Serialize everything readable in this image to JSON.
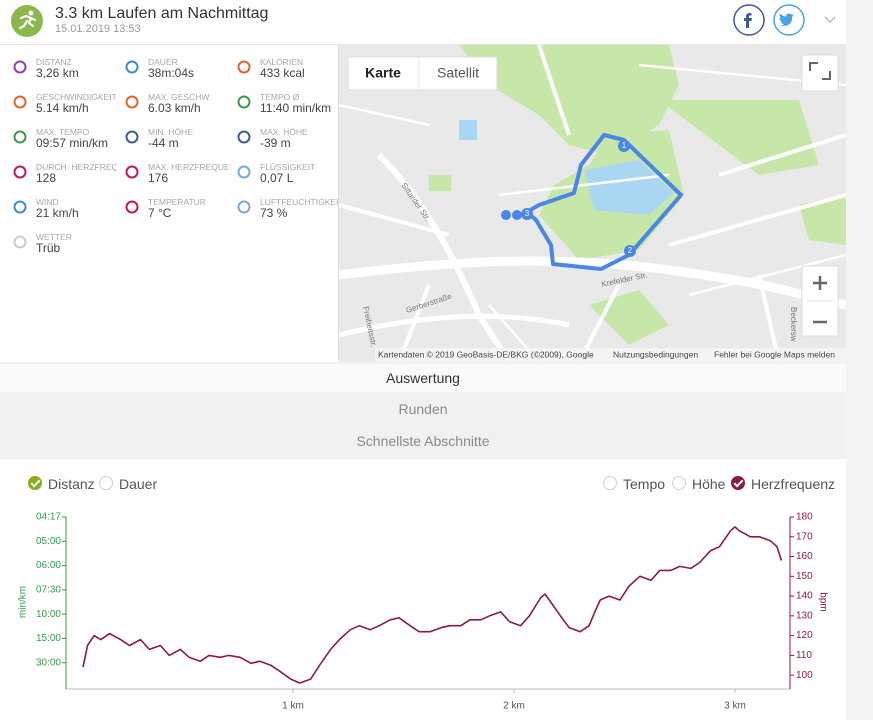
{
  "header": {
    "title": "3.3 km Laufen am Nachmittag",
    "date": "15.01.2019 13:53"
  },
  "stats": [
    {
      "label": "DISTANZ",
      "value": "3,26 km"
    },
    {
      "label": "DAUER",
      "value": "38m:04s"
    },
    {
      "label": "KALORIEN",
      "value": "433 kcal"
    },
    {
      "label": "GESCHWINDIGKEIT Ø",
      "value": "5.14 km/h"
    },
    {
      "label": "MAX. GESCHW.",
      "value": "6.03 km/h"
    },
    {
      "label": "TEMPO Ø",
      "value": "11:40 min/km"
    },
    {
      "label": "MAX. TEMPO",
      "value": "09:57 min/km"
    },
    {
      "label": "MIN. HÖHE",
      "value": "-44 m"
    },
    {
      "label": "MAX. HÖHE",
      "value": "-39 m"
    },
    {
      "label": "DURCH. HERZFREQUENZ",
      "value": "128"
    },
    {
      "label": "MAX. HERZFREQUENZ",
      "value": "176"
    },
    {
      "label": "FLÜSSIGKEIT",
      "value": "0,07 L"
    },
    {
      "label": "WIND",
      "value": "21 km/h"
    },
    {
      "label": "TEMPERATUR",
      "value": "7 °C"
    },
    {
      "label": "LUFTFEUCHTIGKEIT",
      "value": "73 %"
    },
    {
      "label": "WETTER",
      "value": "Trüb"
    }
  ],
  "map": {
    "buttons": [
      "Karte",
      "Satellit"
    ],
    "streets": [
      "Sittarder Str.",
      "Krefelder Str.",
      "Gerberstraße",
      "Freiheitsstr.",
      "Beckersw"
    ],
    "route_markers": [
      "1",
      "2",
      "3"
    ],
    "attribution": [
      "Kartendaten © 2019 GeoBasis-DE/BKG (©2009), Google",
      "Nutzungsbedingungen",
      "Fehler bei Google Maps melden"
    ]
  },
  "tabs": [
    "Auswertung",
    "Runden",
    "Schnellste Abschnitte"
  ],
  "chart_controls": {
    "x_modes": [
      "Distanz",
      "Dauer"
    ],
    "series_toggles": [
      "Tempo",
      "Höhe",
      "Herzfrequenz"
    ]
  },
  "chart_data": {
    "type": "line",
    "y_label": "min/km",
    "y2_label": "bpm",
    "xlim": [
      0,
      3.24
    ],
    "xticks": [
      {
        "value": 1,
        "label": "1 km"
      },
      {
        "value": 2,
        "label": "2 km"
      },
      {
        "value": 3,
        "label": "3 km"
      }
    ],
    "ylim": [
      0,
      14
    ],
    "yticks": [
      {
        "value": 2,
        "label": "30:00"
      },
      {
        "value": 4,
        "label": "15:00"
      },
      {
        "value": 6,
        "label": "10:00"
      },
      {
        "value": 8,
        "label": "07:30"
      },
      {
        "value": 10,
        "label": "06:00"
      },
      {
        "value": 12,
        "label": "05:00"
      },
      {
        "value": 14,
        "label": "04:17"
      }
    ],
    "y_color": "#3a9a4a",
    "y2lim": [
      94,
      180
    ],
    "y2ticks": [
      100,
      110,
      120,
      130,
      140,
      150,
      160,
      170,
      180
    ],
    "y2_color": "#8e1a3d",
    "x": [
      0.05,
      0.07,
      0.1,
      0.13,
      0.17,
      0.22,
      0.26,
      0.31,
      0.35,
      0.4,
      0.44,
      0.49,
      0.53,
      0.58,
      0.62,
      0.67,
      0.71,
      0.76,
      0.81,
      0.85,
      0.9,
      0.94,
      0.99,
      1.03,
      1.08,
      1.12,
      1.17,
      1.21,
      1.26,
      1.3,
      1.35,
      1.39,
      1.44,
      1.48,
      1.53,
      1.57,
      1.62,
      1.67,
      1.71,
      1.76,
      1.8,
      1.85,
      1.89,
      1.94,
      1.98,
      2.03,
      2.07,
      2.12,
      2.14,
      2.16,
      2.21,
      2.25,
      2.3,
      2.34,
      2.37,
      2.39,
      2.43,
      2.48,
      2.52,
      2.57,
      2.62,
      2.66,
      2.71,
      2.75,
      2.8,
      2.84,
      2.89,
      2.93,
      2.98,
      3.0,
      3.02,
      3.07,
      3.11,
      3.16,
      3.19,
      3.21
    ],
    "series": [
      {
        "name": "Herzfrequenz",
        "color": "#8e1a3d",
        "axis": "y2",
        "values": [
          104,
          115,
          120,
          118,
          121,
          118,
          115,
          118,
          113,
          115,
          110,
          113,
          109,
          107,
          110,
          109,
          110,
          109,
          106,
          107,
          105,
          102,
          98,
          96,
          98,
          105,
          113,
          118,
          123,
          125,
          123,
          125,
          128,
          129,
          125,
          122,
          122,
          124,
          125,
          125,
          128,
          128,
          130,
          132,
          127,
          125,
          130,
          139,
          141,
          138,
          130,
          124,
          122,
          125,
          133,
          138,
          140,
          138,
          145,
          150,
          148,
          153,
          153,
          155,
          154,
          157,
          163,
          165,
          173,
          175,
          173,
          170,
          170,
          168,
          165,
          158
        ]
      }
    ]
  }
}
